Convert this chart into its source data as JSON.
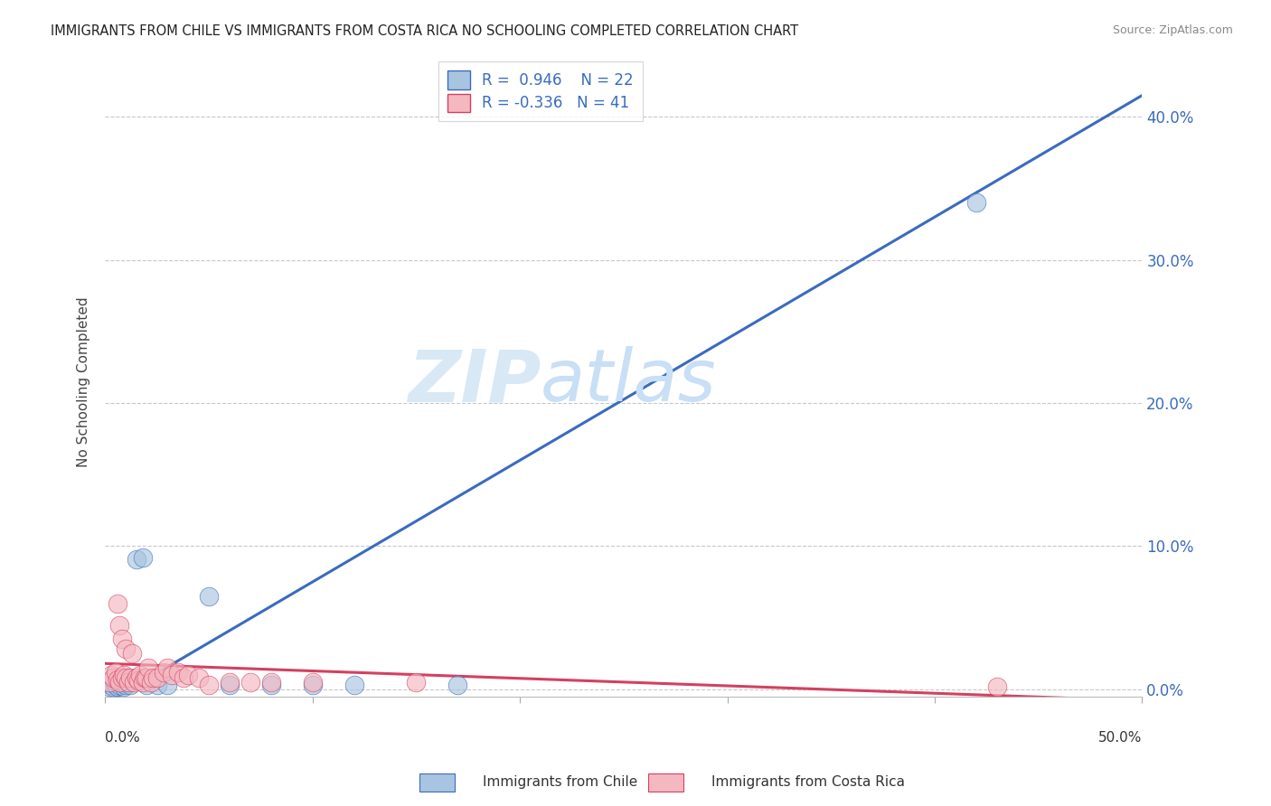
{
  "title": "IMMIGRANTS FROM CHILE VS IMMIGRANTS FROM COSTA RICA NO SCHOOLING COMPLETED CORRELATION CHART",
  "source": "Source: ZipAtlas.com",
  "ylabel": "No Schooling Completed",
  "ytick_labels": [
    "0.0%",
    "10.0%",
    "20.0%",
    "30.0%",
    "40.0%"
  ],
  "ytick_values": [
    0.0,
    0.1,
    0.2,
    0.3,
    0.4
  ],
  "xlim": [
    0.0,
    0.5
  ],
  "ylim": [
    -0.005,
    0.435
  ],
  "chile_R": 0.946,
  "chile_N": 22,
  "costarica_R": -0.336,
  "costarica_N": 41,
  "chile_color": "#a8c4e0",
  "chile_line_color": "#3a6bbf",
  "costarica_color": "#f4b8c1",
  "costarica_line_color": "#d44060",
  "watermark_top": "ZIP",
  "watermark_bottom": "atlas",
  "watermark_color": "#d8e8f5",
  "legend_label_chile": "Immigrants from Chile",
  "legend_label_costarica": "Immigrants from Costa Rica",
  "chile_x": [
    0.002,
    0.003,
    0.004,
    0.005,
    0.006,
    0.007,
    0.008,
    0.009,
    0.01,
    0.012,
    0.015,
    0.018,
    0.02,
    0.025,
    0.03,
    0.05,
    0.06,
    0.08,
    0.1,
    0.12,
    0.17,
    0.42
  ],
  "chile_y": [
    0.002,
    0.003,
    0.002,
    0.003,
    0.002,
    0.003,
    0.004,
    0.002,
    0.003,
    0.003,
    0.091,
    0.092,
    0.003,
    0.003,
    0.003,
    0.065,
    0.003,
    0.003,
    0.003,
    0.003,
    0.003,
    0.34
  ],
  "costarica_x": [
    0.002,
    0.003,
    0.004,
    0.005,
    0.006,
    0.006,
    0.007,
    0.007,
    0.008,
    0.008,
    0.009,
    0.01,
    0.01,
    0.011,
    0.012,
    0.013,
    0.014,
    0.015,
    0.016,
    0.017,
    0.018,
    0.019,
    0.02,
    0.021,
    0.022,
    0.023,
    0.025,
    0.028,
    0.03,
    0.032,
    0.035,
    0.038,
    0.04,
    0.045,
    0.05,
    0.06,
    0.07,
    0.08,
    0.1,
    0.15,
    0.43
  ],
  "costarica_y": [
    0.005,
    0.01,
    0.008,
    0.012,
    0.007,
    0.06,
    0.005,
    0.045,
    0.008,
    0.035,
    0.01,
    0.008,
    0.028,
    0.005,
    0.008,
    0.025,
    0.005,
    0.008,
    0.006,
    0.01,
    0.005,
    0.008,
    0.008,
    0.015,
    0.005,
    0.008,
    0.008,
    0.012,
    0.015,
    0.01,
    0.012,
    0.008,
    0.01,
    0.008,
    0.003,
    0.005,
    0.005,
    0.005,
    0.005,
    0.005,
    0.002
  ],
  "background_color": "#ffffff",
  "grid_color": "#c8c8c8",
  "chile_line_x0": 0.0,
  "chile_line_y0": -0.01,
  "chile_line_x1": 0.5,
  "chile_line_y1": 0.415,
  "cr_line_x0": 0.0,
  "cr_line_y0": 0.018,
  "cr_line_x1": 0.5,
  "cr_line_y1": -0.008
}
